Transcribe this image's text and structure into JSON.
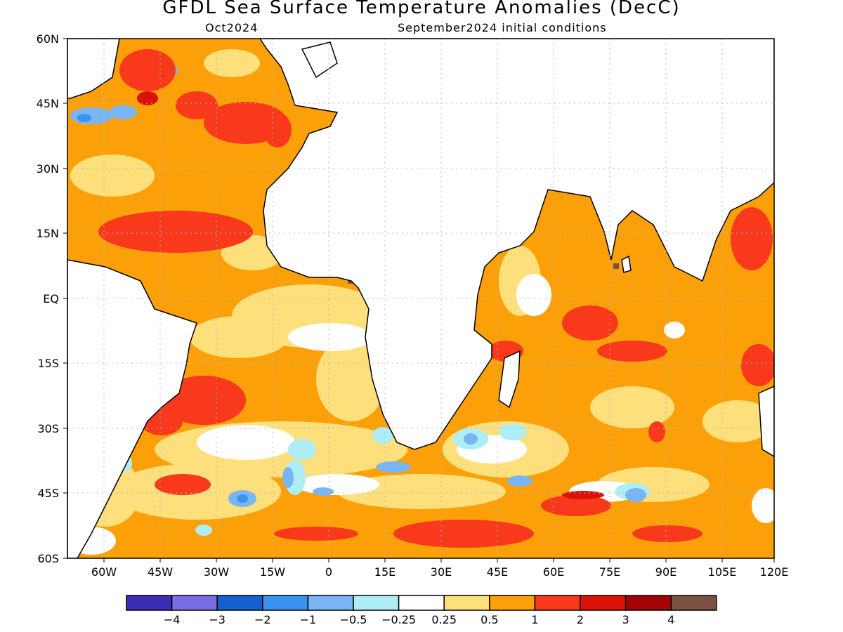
{
  "title": "GFDL Sea Surface Temperature Anomalies (DecC)",
  "subtitle_left": "Oct2024",
  "subtitle_right": "September2024 initial conditions",
  "map": {
    "lat_labels": [
      "60N",
      "45N",
      "30N",
      "15N",
      "EQ",
      "15S",
      "30S",
      "45S",
      "60S"
    ],
    "lon_labels": [
      "60W",
      "45W",
      "30W",
      "15W",
      "0",
      "15E",
      "30E",
      "45E",
      "60E",
      "75E",
      "90E",
      "105E",
      "120E"
    ],
    "grid": true
  },
  "colorbar": {
    "boundaries": [
      "−4",
      "−3",
      "−2",
      "−1",
      "−0.5",
      "−0.25",
      "0.25",
      "0.5",
      "1",
      "2",
      "3",
      "4"
    ],
    "colors": [
      "#3b2db5",
      "#7b6ce6",
      "#155fcf",
      "#3c93ef",
      "#77b5f5",
      "#aeeef7",
      "#ffffff",
      "#fddf7c",
      "#fca00a",
      "#f8391b",
      "#db1208",
      "#a20404",
      "#7a5043"
    ]
  }
}
